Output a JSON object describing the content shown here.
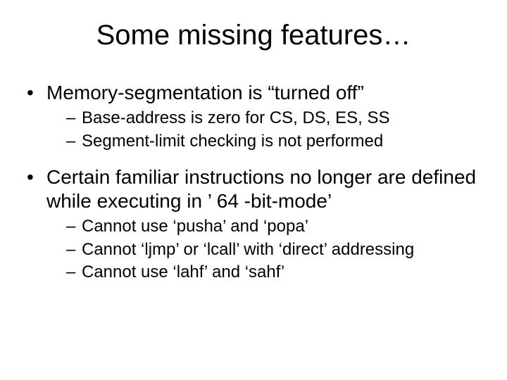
{
  "title": "Some missing features…",
  "bullets": [
    {
      "text": "Memory-segmentation is “turned off”",
      "sub": [
        "Base-address is zero for CS, DS, ES, SS",
        "Segment-limit checking is not performed"
      ]
    },
    {
      "text": "Certain familiar instructions no longer are defined while executing in ’ 64 -bit-mode’",
      "sub": [
        "Cannot use ‘pusha’ and ‘popa’",
        "Cannot ‘ljmp’ or ‘lcall’ with ‘direct’ addressing",
        "Cannot use ‘lahf’ and ‘sahf’"
      ]
    }
  ]
}
